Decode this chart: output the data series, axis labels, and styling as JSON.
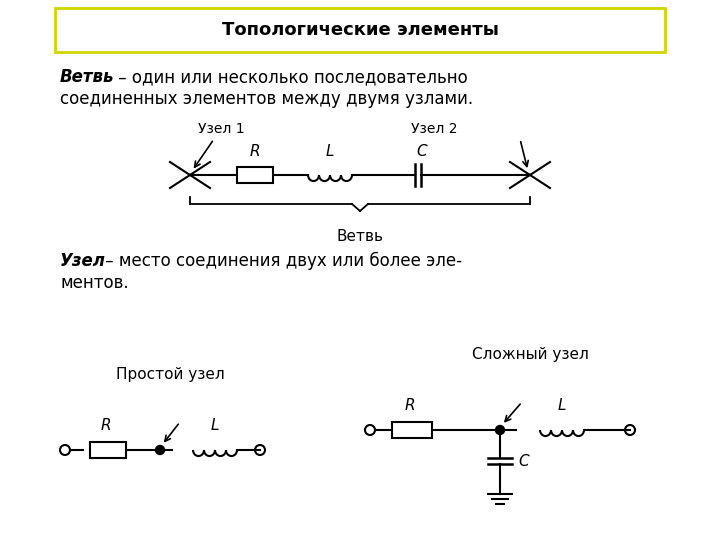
{
  "title": "Топологические элементы",
  "title_fontsize": 13,
  "background_color": "#ffffff",
  "border_color": "#d4d400",
  "text1_bold": "Ветвь",
  "text1_rest": " – один или несколько последовательно\nсоединенных элементов между двумя узлами.",
  "text2_bold": "Узел",
  "text2_rest": " – место соединения двух или более эле-\nментов.",
  "label_vetv": "Ветвь",
  "label_uzel1": "Узел 1",
  "label_uzel2": "Узел 2",
  "label_R1": "R",
  "label_L1": "L",
  "label_C1": "C",
  "label_prostoy": "Простой узел",
  "label_slozhny": "Сложный узел",
  "label_R2": "R",
  "label_L2": "L",
  "label_R3": "R",
  "label_L3": "L",
  "label_C3": "C",
  "fig_w": 7.2,
  "fig_h": 5.4,
  "dpi": 100
}
